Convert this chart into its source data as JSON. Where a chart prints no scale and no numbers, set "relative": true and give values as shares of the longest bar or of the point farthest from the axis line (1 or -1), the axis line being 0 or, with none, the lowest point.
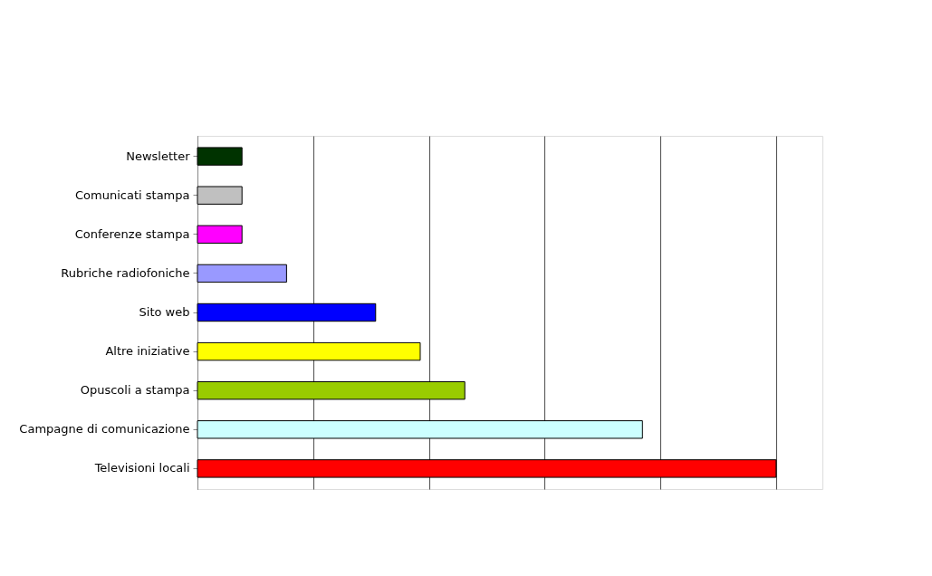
{
  "chart_data": {
    "type": "bar",
    "orientation": "horizontal",
    "relative": true,
    "grid": "x",
    "categories": [
      "Newsletter",
      "Comunicati stampa",
      "Conferenze stampa",
      "Rubriche radiofoniche",
      "Sito web",
      "Altre iniziative",
      "Opuscoli a stampa",
      "Campagne di comunicazione",
      "Televisioni locali"
    ],
    "values": [
      0.077,
      0.077,
      0.077,
      0.154,
      0.308,
      0.385,
      0.462,
      0.769,
      1
    ],
    "colors": [
      "#003300",
      "#c0c0c0",
      "#ff00ff",
      "#9999ff",
      "#0000ff",
      "#ffff00",
      "#99cc00",
      "#ccffff",
      "#ff0000"
    ]
  }
}
